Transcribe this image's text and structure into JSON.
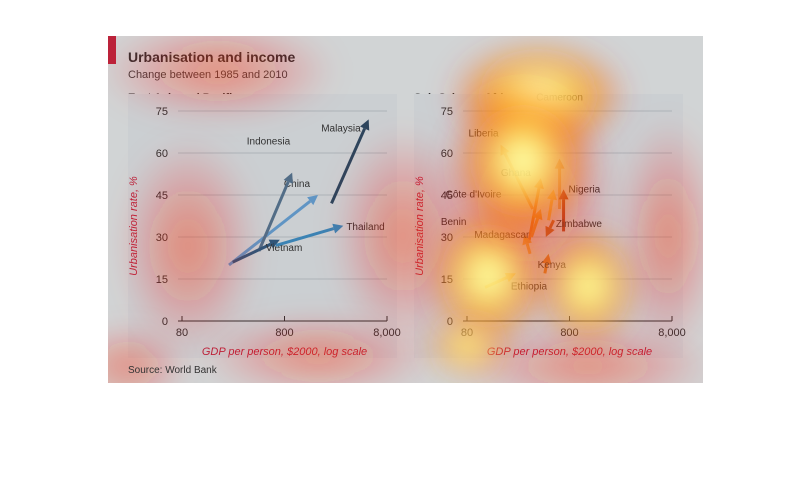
{
  "header": {
    "title": "Urbanisation and income",
    "subtitle": "Change between 1985 and 2010",
    "source": "Source: World Bank"
  },
  "colors": {
    "background": "#e4e8ea",
    "plot_background": "#dde2e6",
    "accent_red": "#c8102e",
    "axis_label": "#c8102e"
  },
  "chart_data": [
    {
      "type": "line",
      "title": "East Asia and Pacific",
      "xlabel": "GDP per person, $2000, log scale",
      "ylabel": "Urbanisation rate, %",
      "xscale": "log",
      "xlim": [
        80,
        8000
      ],
      "ylim": [
        0,
        80
      ],
      "xticks": [
        80,
        800,
        8000
      ],
      "xtick_labels": [
        "80",
        "800",
        "8,000"
      ],
      "yticks": [
        0,
        15,
        30,
        45,
        60,
        75
      ],
      "grid": true,
      "series": [
        {
          "name": "China",
          "color": "#5b9bd5",
          "x": [
            230,
            1700
          ],
          "y": [
            20,
            45
          ]
        },
        {
          "name": "Indonesia",
          "color": "#4a6b8a",
          "x": [
            450,
            950
          ],
          "y": [
            25,
            53
          ]
        },
        {
          "name": "Vietnam",
          "color": "#1f4e79",
          "x": [
            250,
            720
          ],
          "y": [
            21,
            29
          ]
        },
        {
          "name": "Thailand",
          "color": "#2e86c1",
          "x": [
            660,
            3000
          ],
          "y": [
            27,
            34
          ]
        },
        {
          "name": "Malaysia",
          "color": "#1b3a57",
          "x": [
            2300,
            5300
          ],
          "y": [
            42,
            72
          ]
        }
      ]
    },
    {
      "type": "line",
      "title": "Sub-Saharan Africa",
      "xlabel": "GDP per person, $2000, log scale",
      "ylabel": "Urbanisation rate, %",
      "xscale": "log",
      "xlim": [
        80,
        8000
      ],
      "ylim": [
        0,
        80
      ],
      "xticks": [
        80,
        800,
        8000
      ],
      "xtick_labels": [
        "80",
        "800",
        "8,000"
      ],
      "yticks": [
        0,
        15,
        30,
        45,
        60,
        75
      ],
      "grid": true,
      "series": [
        {
          "name": "Liberia",
          "color": "#e08a3c",
          "x": [
            350,
            170
          ],
          "y": [
            40,
            63
          ]
        },
        {
          "name": "Cameroon",
          "color": "#d9a066",
          "x": [
            640,
            640
          ],
          "y": [
            40,
            58
          ]
        },
        {
          "name": "Nigeria",
          "color": "#b03a1a",
          "x": [
            700,
            700
          ],
          "y": [
            32,
            47
          ]
        },
        {
          "name": "Ghana",
          "color": "#e67e22",
          "x": [
            320,
            420
          ],
          "y": [
            28,
            51
          ]
        },
        {
          "name": "Madagascar",
          "color": "#e8a33d",
          "x": [
            330,
            290
          ],
          "y": [
            24,
            31
          ]
        },
        {
          "name": "Zimbabwe",
          "color": "#c0651f",
          "x": [
            560,
            470
          ],
          "y": [
            36,
            30
          ]
        },
        {
          "name": "Côte d'Ivoire",
          "color": "#f0b44a",
          "x": [
            500,
            560
          ],
          "y": [
            36,
            47
          ]
        },
        {
          "name": "Benin",
          "color": "#e8952f",
          "x": [
            340,
            420
          ],
          "y": [
            30,
            40
          ]
        },
        {
          "name": "Kenya",
          "color": "#d97b29",
          "x": [
            460,
            500
          ],
          "y": [
            17,
            24
          ]
        },
        {
          "name": "Ethiopia",
          "color": "#f2b33d",
          "x": [
            120,
            240
          ],
          "y": [
            12,
            17
          ]
        }
      ]
    }
  ],
  "labels": {
    "left": {
      "China": "China",
      "Indonesia": "Indonesia",
      "Vietnam": "Vietnam",
      "Thailand": "Thailand",
      "Malaysia": "Malaysia"
    },
    "right": {
      "Liberia": "Liberia",
      "Cameroon": "Cameroon",
      "Nigeria": "Nigeria",
      "Ghana": "Ghana",
      "Madagascar": "Madagascar",
      "Zimbabwe": "Zimbabwe",
      "Kenya": "Kenya",
      "Ethiopia": "Ethiopia",
      "Ivory": "Côte d'Ivoire",
      "Benin": "Benin"
    }
  }
}
